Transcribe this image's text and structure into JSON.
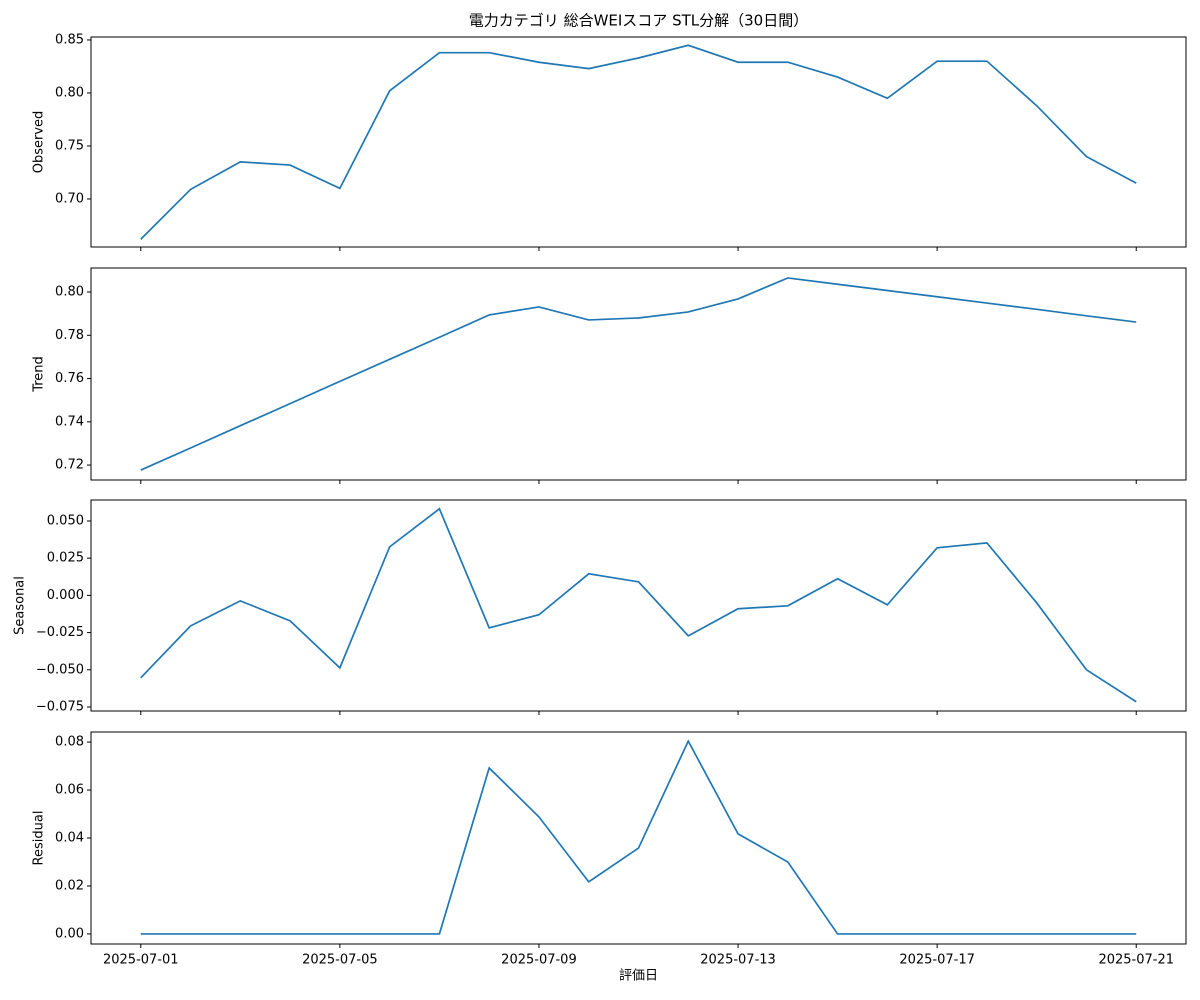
{
  "chart_data": [
    {
      "type": "line",
      "title": "電力カテゴリ 総合WEIスコア STL分解（30日間）",
      "ylabel": "Observed",
      "color": "#1f77b4",
      "x": [
        "2025-07-01",
        "2025-07-02",
        "2025-07-03",
        "2025-07-04",
        "2025-07-05",
        "2025-07-06",
        "2025-07-07",
        "2025-07-08",
        "2025-07-09",
        "2025-07-10",
        "2025-07-11",
        "2025-07-12",
        "2025-07-13",
        "2025-07-14",
        "2025-07-15",
        "2025-07-16",
        "2025-07-17",
        "2025-07-18",
        "2025-07-19",
        "2025-07-20",
        "2025-07-21"
      ],
      "values": [
        0.662,
        0.709,
        0.735,
        0.732,
        0.71,
        0.802,
        0.838,
        0.838,
        0.829,
        0.823,
        0.833,
        0.845,
        0.829,
        0.829,
        0.815,
        0.795,
        0.83,
        0.83,
        0.788,
        0.74,
        0.715
      ],
      "ylim": [
        0.6547,
        0.8528
      ],
      "yticks": [
        {
          "value": 0.7,
          "label": "0.70"
        },
        0.75,
        {
          "value": 0.8,
          "label": "0.80"
        },
        0.85
      ]
    },
    {
      "type": "line",
      "ylabel": "Trend",
      "color": "#1f77b4",
      "x": [
        "2025-07-01",
        "2025-07-02",
        "2025-07-03",
        "2025-07-04",
        "2025-07-05",
        "2025-07-06",
        "2025-07-07",
        "2025-07-08",
        "2025-07-09",
        "2025-07-10",
        "2025-07-11",
        "2025-07-12",
        "2025-07-13",
        "2025-07-14",
        "2025-07-15",
        "2025-07-16",
        "2025-07-17",
        "2025-07-18",
        "2025-07-19",
        "2025-07-20",
        "2025-07-21"
      ],
      "values": [
        0.7177,
        0.7279,
        0.7382,
        0.7484,
        0.7587,
        0.7689,
        0.7791,
        0.7894,
        0.7931,
        0.7871,
        0.788,
        0.7908,
        0.7968,
        0.8065,
        0.8036,
        0.8007,
        0.7978,
        0.7949,
        0.792,
        0.789,
        0.7861
      ],
      "ylim": [
        0.7131,
        0.8111
      ],
      "yticks": [
        0.72,
        0.74,
        0.76,
        0.78,
        {
          "value": 0.8,
          "label": "0.80"
        }
      ]
    },
    {
      "type": "line",
      "ylabel": "Seasonal",
      "color": "#1f77b4",
      "x": [
        "2025-07-01",
        "2025-07-02",
        "2025-07-03",
        "2025-07-04",
        "2025-07-05",
        "2025-07-06",
        "2025-07-07",
        "2025-07-08",
        "2025-07-09",
        "2025-07-10",
        "2025-07-11",
        "2025-07-12",
        "2025-07-13",
        "2025-07-14",
        "2025-07-15",
        "2025-07-16",
        "2025-07-17",
        "2025-07-18",
        "2025-07-19",
        "2025-07-20",
        "2025-07-21"
      ],
      "values": [
        -0.0554,
        -0.0205,
        -0.0037,
        -0.0171,
        -0.0487,
        0.0326,
        0.0582,
        -0.0218,
        -0.013,
        0.0145,
        0.0091,
        -0.0272,
        -0.009,
        -0.007,
        0.0112,
        -0.0063,
        0.032,
        0.0353,
        -0.005,
        -0.05,
        -0.0715
      ],
      "ylim": [
        -0.0777,
        0.0641
      ],
      "yticks": [
        {
          "value": -0.075,
          "label": "−0.075"
        },
        {
          "value": -0.05,
          "label": "−0.050"
        },
        {
          "value": -0.025,
          "label": "−0.025"
        },
        {
          "value": 0,
          "label": "0.000"
        },
        {
          "value": 0.025,
          "label": "0.025"
        },
        {
          "value": 0.05,
          "label": "0.050"
        }
      ]
    },
    {
      "type": "line",
      "ylabel": "Residual",
      "xlabel": "評価日",
      "color": "#1f77b4",
      "x": [
        "2025-07-01",
        "2025-07-02",
        "2025-07-03",
        "2025-07-04",
        "2025-07-05",
        "2025-07-06",
        "2025-07-07",
        "2025-07-08",
        "2025-07-09",
        "2025-07-10",
        "2025-07-11",
        "2025-07-12",
        "2025-07-13",
        "2025-07-14",
        "2025-07-15",
        "2025-07-16",
        "2025-07-17",
        "2025-07-18",
        "2025-07-19",
        "2025-07-20",
        "2025-07-21"
      ],
      "values": [
        0,
        0,
        0,
        0,
        0,
        0,
        0,
        0.0692,
        0.0488,
        0.0217,
        0.0358,
        0.0804,
        0.0417,
        0.03,
        0,
        0,
        0,
        0,
        0,
        0,
        0
      ],
      "ylim": [
        -0.0042,
        0.0842
      ],
      "yticks": [
        {
          "value": 0,
          "label": "0.00"
        },
        0.02,
        0.04,
        0.06,
        0.08
      ],
      "xlim": [
        "2025-06-30",
        "2025-07-22"
      ],
      "xticks": [
        "2025-07-01",
        "2025-07-05",
        "2025-07-09",
        "2025-07-13",
        "2025-07-17",
        "2025-07-21"
      ]
    }
  ]
}
